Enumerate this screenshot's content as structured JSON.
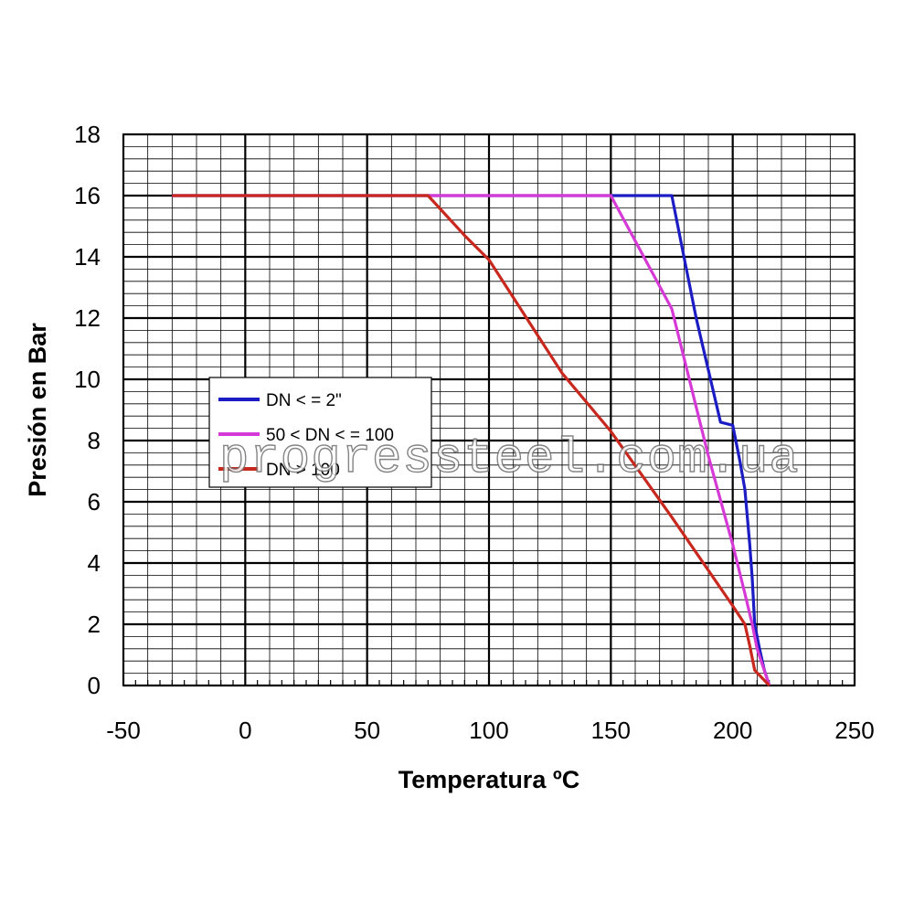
{
  "chart_data": {
    "type": "line",
    "title": "",
    "xlabel": "Temperatura ºC",
    "ylabel": "Presión en Bar",
    "xlim": [
      -50,
      250
    ],
    "ylim": [
      0,
      18
    ],
    "x_ticks": [
      -50,
      0,
      50,
      100,
      150,
      200,
      250
    ],
    "y_ticks": [
      0,
      2,
      4,
      6,
      8,
      10,
      12,
      14,
      16,
      18
    ],
    "grid": true,
    "legend_position": "center-left",
    "series": [
      {
        "name": "DN < = 2\"",
        "color": "#1c1cc4",
        "points": [
          [
            -30,
            16
          ],
          [
            175,
            16
          ],
          [
            180,
            14
          ],
          [
            185,
            12
          ],
          [
            190,
            10.3
          ],
          [
            195,
            8.6
          ],
          [
            200,
            8.5
          ],
          [
            203,
            7.3
          ],
          [
            205,
            6.4
          ],
          [
            207,
            4.6
          ],
          [
            208,
            3.5
          ],
          [
            209,
            2
          ],
          [
            211,
            1.2
          ],
          [
            213,
            0.5
          ],
          [
            215,
            0
          ]
        ]
      },
      {
        "name": "50 < DN < = 100",
        "color": "#d63ad6",
        "points": [
          [
            -30,
            16
          ],
          [
            150,
            16
          ],
          [
            175,
            12.3
          ],
          [
            190,
            7.5
          ],
          [
            200,
            4.6
          ],
          [
            205,
            3.0
          ],
          [
            208,
            2.0
          ],
          [
            210,
            1.2
          ],
          [
            215,
            0
          ]
        ]
      },
      {
        "name": "DN > 100",
        "color": "#c8281e",
        "points": [
          [
            -30,
            16
          ],
          [
            75,
            16
          ],
          [
            90,
            14.7
          ],
          [
            100,
            13.9
          ],
          [
            130,
            10.2
          ],
          [
            150,
            8.3
          ],
          [
            175,
            5.5
          ],
          [
            200,
            2.6
          ],
          [
            205,
            2.0
          ],
          [
            207,
            1.3
          ],
          [
            209,
            0.5
          ],
          [
            215,
            0
          ]
        ]
      }
    ],
    "watermark": "progressteel.com.ua"
  }
}
